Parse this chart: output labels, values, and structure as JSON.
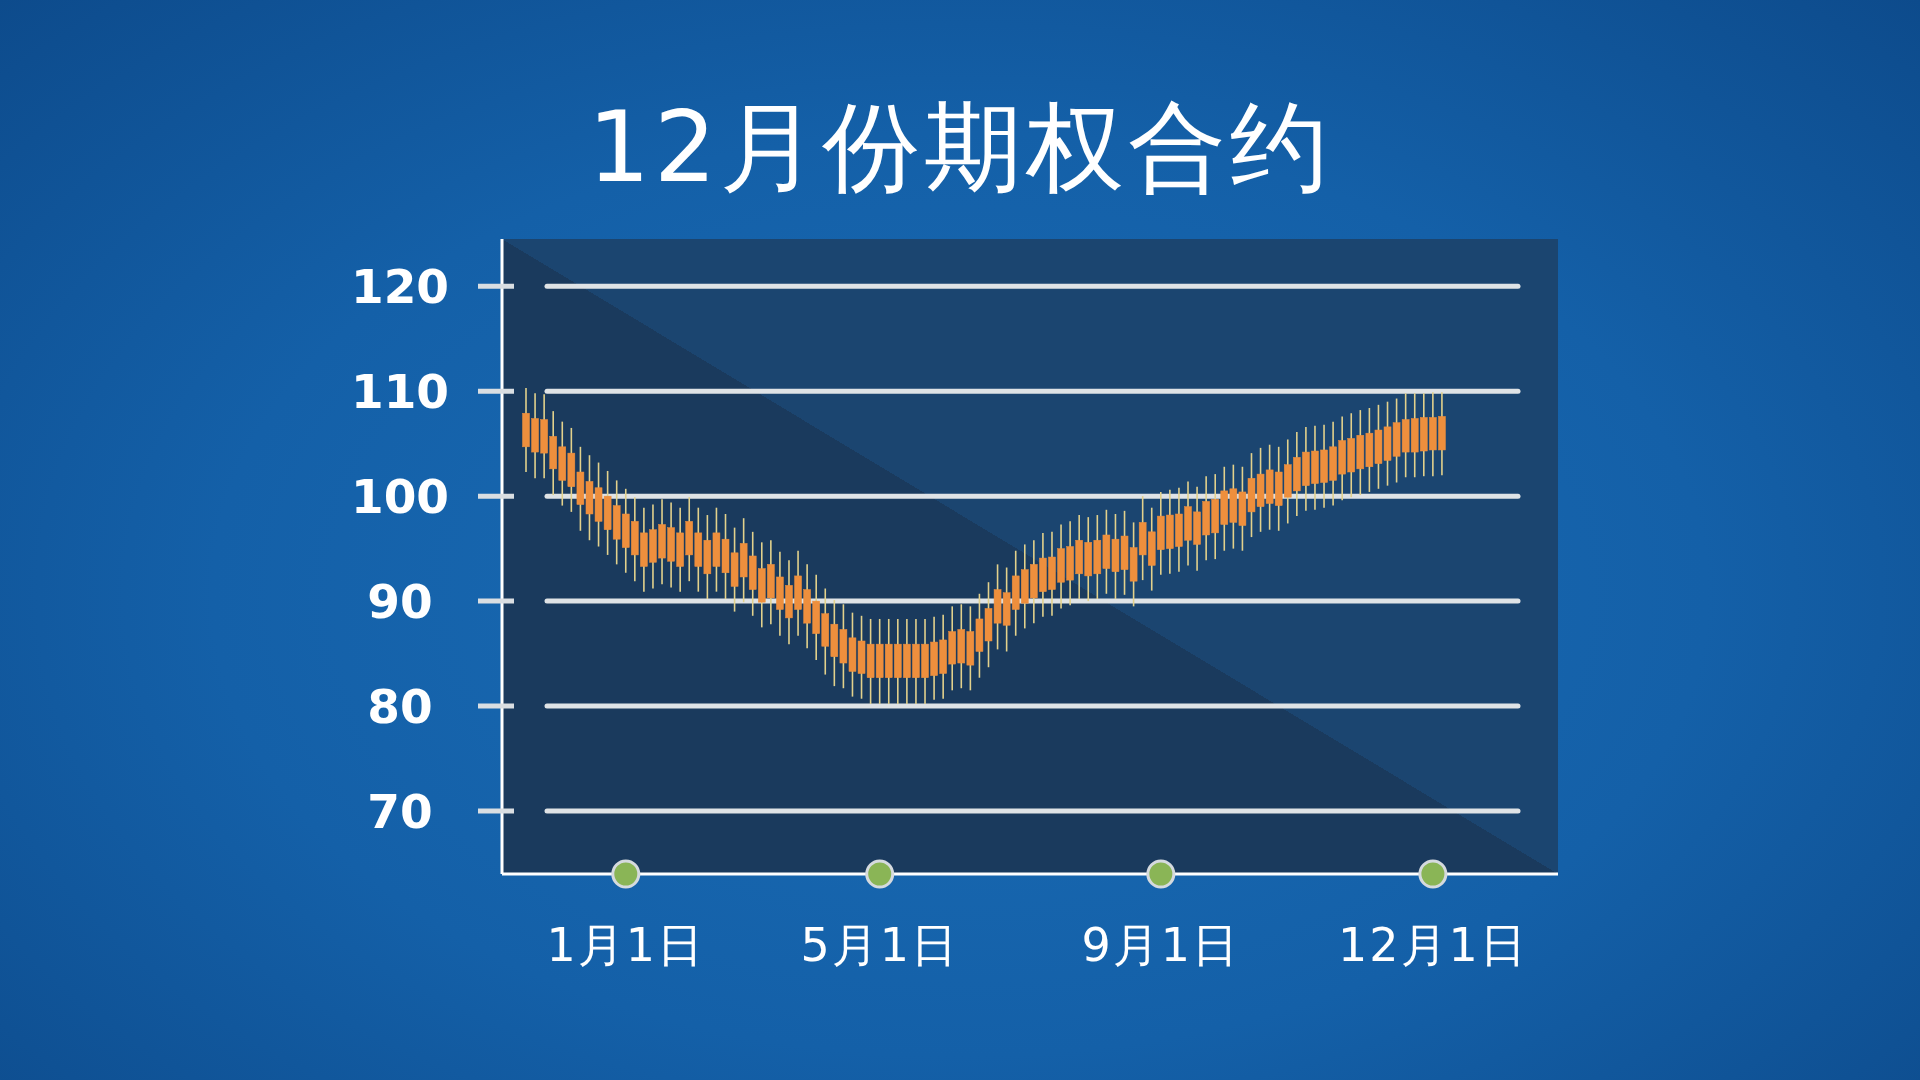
{
  "chart_data": {
    "type": "candlestick",
    "title": "12月份期权合约",
    "categories": [
      null,
      null,
      null,
      null,
      null,
      null,
      null,
      null,
      null,
      null,
      null,
      "1月1日",
      null,
      null,
      null,
      null,
      null,
      null,
      null,
      null,
      null,
      null,
      null,
      null,
      null,
      null,
      null,
      null,
      null,
      null,
      null,
      null,
      null,
      null,
      null,
      null,
      null,
      null,
      null,
      "5月1日",
      null,
      null,
      null,
      null,
      null,
      null,
      null,
      null,
      null,
      null,
      null,
      null,
      null,
      null,
      null,
      null,
      null,
      null,
      null,
      null,
      null,
      null,
      null,
      null,
      null,
      null,
      null,
      null,
      null,
      null,
      "9月1日",
      null,
      null,
      null,
      null,
      null,
      null,
      null,
      null,
      null,
      null,
      null,
      null,
      null,
      null,
      null,
      null,
      null,
      null,
      null,
      null,
      null,
      null,
      null,
      null,
      null,
      null,
      null,
      null,
      null,
      "12月1日",
      null
    ],
    "ohlc": [
      [
        104.7,
        110.3,
        102.3,
        107.9
      ],
      [
        104.2,
        109.8,
        101.7,
        107.4
      ],
      [
        104.1,
        109.7,
        101.7,
        107.3
      ],
      [
        102.6,
        108.1,
        100.1,
        105.7
      ],
      [
        101.5,
        107.1,
        99.1,
        104.7
      ],
      [
        100.9,
        106.5,
        98.5,
        104.1
      ],
      [
        99.2,
        104.7,
        96.7,
        102.3
      ],
      [
        98.3,
        103.9,
        95.8,
        101.4
      ],
      [
        97.6,
        103.2,
        95.2,
        100.8
      ],
      [
        96.8,
        102.4,
        94.4,
        100
      ],
      [
        95.9,
        101.5,
        93.5,
        99.1
      ],
      [
        95.1,
        100.7,
        92.7,
        98.3
      ],
      [
        94.4,
        99.9,
        91.9,
        97.6
      ],
      [
        93.3,
        98.9,
        90.9,
        96.5
      ],
      [
        93.7,
        99.2,
        91.2,
        96.8
      ],
      [
        94.1,
        99.7,
        91.6,
        97.3
      ],
      [
        93.8,
        99.4,
        91.3,
        97
      ],
      [
        93.3,
        98.9,
        90.9,
        96.5
      ],
      [
        94.4,
        99.9,
        91.9,
        97.6
      ],
      [
        93.3,
        98.9,
        90.9,
        96.5
      ],
      [
        92.6,
        98.2,
        90.2,
        95.8
      ],
      [
        93.3,
        98.9,
        90.9,
        96.5
      ],
      [
        92.7,
        98.3,
        90.2,
        95.9
      ],
      [
        91.4,
        97,
        89,
        94.6
      ],
      [
        92.3,
        97.9,
        89.9,
        95.5
      ],
      [
        91.1,
        96.6,
        88.6,
        94.3
      ],
      [
        89.9,
        95.6,
        87.5,
        93.1
      ],
      [
        90.3,
        95.8,
        87.8,
        93.5
      ],
      [
        89.2,
        94.7,
        86.7,
        92.3
      ],
      [
        88.4,
        93.9,
        85.9,
        91.5
      ],
      [
        89.2,
        94.8,
        86.7,
        92.4
      ],
      [
        87.9,
        93.5,
        85.5,
        91.1
      ],
      [
        86.9,
        92.5,
        84.4,
        90
      ],
      [
        85.7,
        91.2,
        83,
        88.8
      ],
      [
        84.7,
        90.1,
        81.9,
        87.8
      ],
      [
        84.1,
        89.7,
        81.7,
        87.3
      ],
      [
        83.3,
        88.9,
        80.9,
        86.5
      ],
      [
        83.1,
        88.6,
        80.7,
        86.2
      ],
      [
        82.7,
        88.3,
        80.2,
        85.9
      ],
      [
        82.7,
        88.3,
        80.2,
        85.9
      ],
      [
        82.7,
        88.3,
        80.2,
        85.9
      ],
      [
        82.7,
        88.3,
        80.2,
        85.9
      ],
      [
        82.7,
        88.3,
        80.2,
        85.9
      ],
      [
        82.7,
        88.3,
        80.2,
        85.9
      ],
      [
        82.7,
        88.3,
        80.2,
        85.9
      ],
      [
        82.9,
        88.5,
        80.6,
        86.1
      ],
      [
        83.1,
        88.7,
        80.7,
        86.3
      ],
      [
        84,
        89.5,
        81.5,
        87.1
      ],
      [
        84.1,
        89.7,
        81.7,
        87.3
      ],
      [
        83.9,
        89.5,
        81.5,
        87.1
      ],
      [
        85.2,
        90.7,
        82.7,
        88.3
      ],
      [
        86.2,
        91.8,
        83.7,
        89.3
      ],
      [
        87.9,
        93.5,
        85.4,
        91.1
      ],
      [
        87.7,
        93.2,
        85.2,
        90.8
      ],
      [
        89.2,
        94.8,
        86.7,
        92.4
      ],
      [
        89.8,
        95.4,
        87.4,
        93
      ],
      [
        90.3,
        95.8,
        87.9,
        93.5
      ],
      [
        90.9,
        96.5,
        88.5,
        94.1
      ],
      [
        91.1,
        96.6,
        88.6,
        94.2
      ],
      [
        91.8,
        97.3,
        89.3,
        95
      ],
      [
        92,
        97.6,
        89.6,
        95.2
      ],
      [
        92.6,
        98.2,
        90.2,
        95.8
      ],
      [
        92.4,
        98,
        90,
        95.6
      ],
      [
        92.6,
        98.2,
        90.2,
        95.8
      ],
      [
        93.1,
        98.7,
        90.7,
        96.3
      ],
      [
        92.8,
        98.3,
        90.2,
        95.9
      ],
      [
        93,
        98.6,
        90.6,
        96.2
      ],
      [
        91.9,
        97.5,
        89.5,
        95.1
      ],
      [
        94.4,
        100,
        92,
        97.5
      ],
      [
        93.4,
        98.9,
        91,
        96.6
      ],
      [
        94.9,
        100.4,
        92.5,
        98.1
      ],
      [
        95,
        100.6,
        92.6,
        98.2
      ],
      [
        95.2,
        100.8,
        92.8,
        98.3
      ],
      [
        95.8,
        101.4,
        93.4,
        99
      ],
      [
        95.4,
        100.9,
        92.9,
        98.5
      ],
      [
        96.3,
        101.9,
        93.9,
        99.5
      ],
      [
        96.5,
        102.1,
        94,
        99.7
      ],
      [
        97.3,
        102.8,
        94.8,
        100.5
      ],
      [
        97.5,
        103,
        95,
        100.7
      ],
      [
        97.2,
        102.8,
        94.8,
        100.4
      ],
      [
        98.5,
        104.1,
        96.1,
        101.7
      ],
      [
        99,
        104.6,
        96.6,
        102.1
      ],
      [
        99.3,
        104.9,
        96.8,
        102.5
      ],
      [
        99.1,
        104.7,
        96.7,
        102.3
      ],
      [
        99.9,
        105.4,
        97.4,
        103
      ],
      [
        100.5,
        106.1,
        98.1,
        103.7
      ],
      [
        101,
        106.6,
        98.6,
        104.2
      ],
      [
        101.2,
        106.7,
        98.7,
        104.3
      ],
      [
        101.3,
        106.8,
        98.9,
        104.4
      ],
      [
        101.5,
        107.1,
        99.1,
        104.7
      ],
      [
        102.1,
        107.6,
        99.6,
        105.3
      ],
      [
        102.3,
        107.9,
        99.9,
        105.5
      ],
      [
        102.6,
        108.2,
        100.1,
        105.8
      ],
      [
        102.8,
        108.4,
        100.4,
        106
      ],
      [
        103.1,
        108.7,
        100.7,
        106.3
      ],
      [
        103.4,
        109,
        101,
        106.6
      ],
      [
        103.8,
        109.3,
        101.3,
        107
      ],
      [
        104.2,
        109.8,
        101.8,
        107.3
      ],
      [
        104.2,
        109.8,
        101.8,
        107.4
      ],
      [
        104.3,
        109.8,
        101.9,
        107.5
      ],
      [
        104.4,
        109.9,
        101.9,
        107.5
      ],
      [
        104.4,
        109.9,
        102,
        107.6
      ]
    ],
    "color": "#ee8f3d",
    "ylim": [
      64,
      124.5
    ],
    "yticks": [
      70,
      80,
      90,
      100,
      110,
      120
    ],
    "grid": "y"
  }
}
